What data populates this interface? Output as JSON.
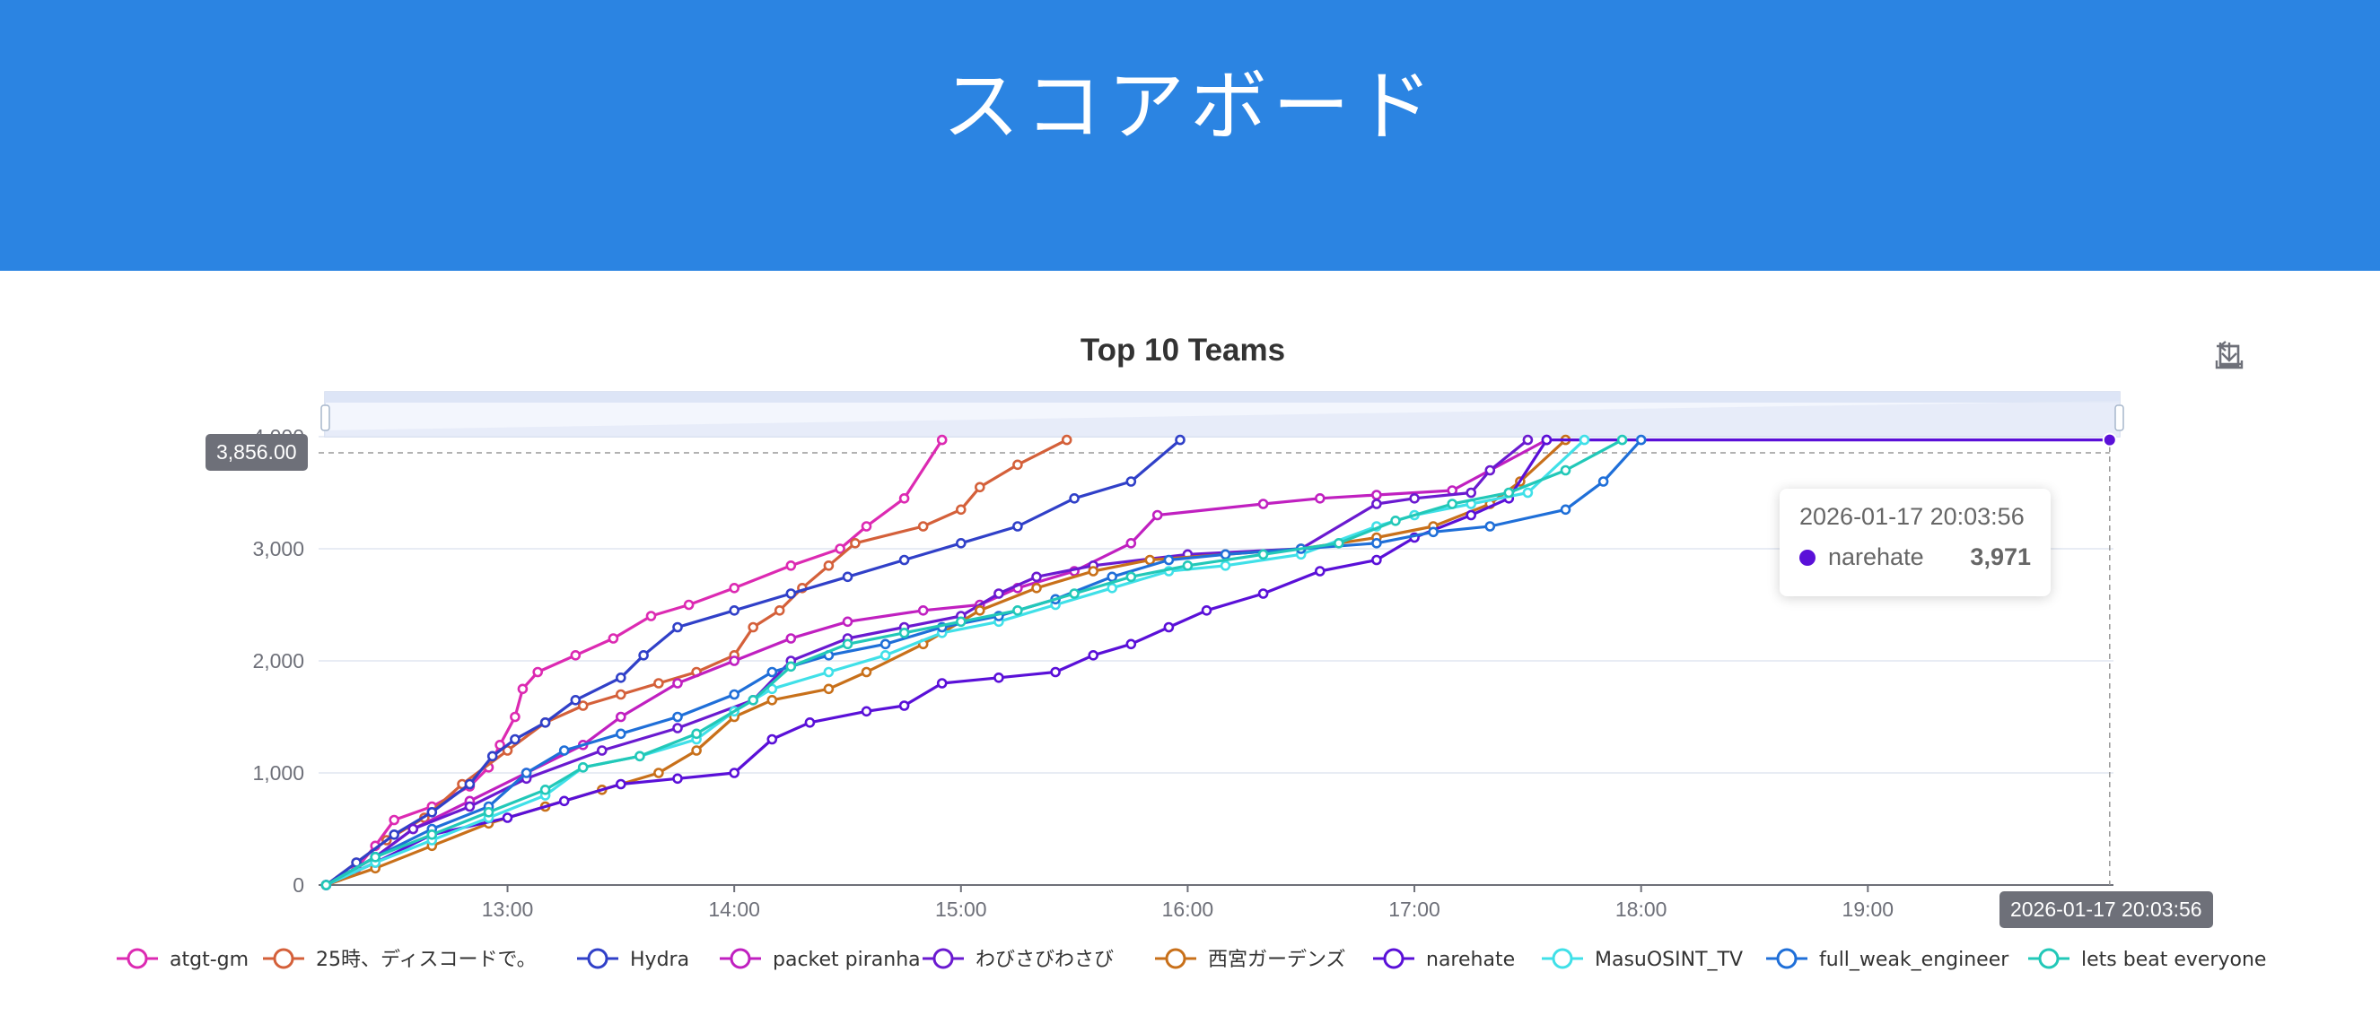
{
  "page": {
    "heading": "スコアボード"
  },
  "toolbox": {
    "icons": [
      "zoom-select-icon",
      "zoom-reset-icon",
      "save-image-icon"
    ]
  },
  "tooltip": {
    "time": "2026-01-17 20:03:56",
    "team": "narehate",
    "score": "3,971",
    "color": "#5a10d8"
  },
  "crosshair": {
    "y_label": "3,856.00",
    "x_label": "2026-01-17 20:03:56"
  },
  "chart_data": {
    "type": "line",
    "title": "Top 10 Teams",
    "xlabel": "",
    "ylabel": "",
    "xlim": [
      "12:10",
      "20:05"
    ],
    "ylim": [
      0,
      4000
    ],
    "x_ticks": [
      "13:00",
      "14:00",
      "15:00",
      "16:00",
      "17:00",
      "18:00",
      "19:00"
    ],
    "y_ticks": [
      "0",
      "1,000",
      "2,000",
      "3,000",
      "4,000"
    ],
    "grid": true,
    "legend_position": "bottom",
    "series": [
      {
        "name": "atgt-gm",
        "color": "#dc2ab2",
        "points": [
          [
            "12:12",
            0
          ],
          [
            "12:20",
            150
          ],
          [
            "12:25",
            350
          ],
          [
            "12:30",
            580
          ],
          [
            "12:40",
            700
          ],
          [
            "12:50",
            880
          ],
          [
            "12:55",
            1050
          ],
          [
            "12:58",
            1250
          ],
          [
            "13:02",
            1500
          ],
          [
            "13:04",
            1750
          ],
          [
            "13:08",
            1900
          ],
          [
            "13:18",
            2050
          ],
          [
            "13:28",
            2200
          ],
          [
            "13:38",
            2400
          ],
          [
            "13:48",
            2500
          ],
          [
            "14:00",
            2650
          ],
          [
            "14:15",
            2850
          ],
          [
            "14:28",
            3000
          ],
          [
            "14:35",
            3200
          ],
          [
            "14:45",
            3450
          ],
          [
            "14:55",
            3971
          ]
        ]
      },
      {
        "name": "25時、ディスコードで。",
        "color": "#d4603a",
        "points": [
          [
            "12:12",
            0
          ],
          [
            "12:20",
            200
          ],
          [
            "12:28",
            400
          ],
          [
            "12:38",
            600
          ],
          [
            "12:48",
            900
          ],
          [
            "13:00",
            1200
          ],
          [
            "13:10",
            1450
          ],
          [
            "13:20",
            1600
          ],
          [
            "13:30",
            1700
          ],
          [
            "13:40",
            1800
          ],
          [
            "13:50",
            1900
          ],
          [
            "14:00",
            2050
          ],
          [
            "14:05",
            2300
          ],
          [
            "14:12",
            2450
          ],
          [
            "14:18",
            2650
          ],
          [
            "14:25",
            2850
          ],
          [
            "14:32",
            3050
          ],
          [
            "14:50",
            3200
          ],
          [
            "15:00",
            3350
          ],
          [
            "15:05",
            3550
          ],
          [
            "15:15",
            3750
          ],
          [
            "15:28",
            3971
          ]
        ]
      },
      {
        "name": "Hydra",
        "color": "#3040c8",
        "points": [
          [
            "12:12",
            0
          ],
          [
            "12:20",
            200
          ],
          [
            "12:30",
            450
          ],
          [
            "12:40",
            650
          ],
          [
            "12:50",
            900
          ],
          [
            "12:56",
            1150
          ],
          [
            "13:02",
            1300
          ],
          [
            "13:10",
            1450
          ],
          [
            "13:18",
            1650
          ],
          [
            "13:30",
            1850
          ],
          [
            "13:36",
            2050
          ],
          [
            "13:45",
            2300
          ],
          [
            "14:00",
            2450
          ],
          [
            "14:15",
            2600
          ],
          [
            "14:30",
            2750
          ],
          [
            "14:45",
            2900
          ],
          [
            "15:00",
            3050
          ],
          [
            "15:15",
            3200
          ],
          [
            "15:30",
            3450
          ],
          [
            "15:45",
            3600
          ],
          [
            "15:58",
            3971
          ]
        ]
      },
      {
        "name": "packet piranha",
        "color": "#c020c0",
        "points": [
          [
            "12:12",
            0
          ],
          [
            "12:25",
            250
          ],
          [
            "12:35",
            500
          ],
          [
            "12:50",
            750
          ],
          [
            "13:05",
            1000
          ],
          [
            "13:20",
            1250
          ],
          [
            "13:30",
            1500
          ],
          [
            "13:45",
            1800
          ],
          [
            "14:00",
            2000
          ],
          [
            "14:15",
            2200
          ],
          [
            "14:30",
            2350
          ],
          [
            "14:50",
            2450
          ],
          [
            "15:05",
            2500
          ],
          [
            "15:15",
            2650
          ],
          [
            "15:30",
            2800
          ],
          [
            "15:45",
            3050
          ],
          [
            "15:52",
            3300
          ],
          [
            "16:20",
            3400
          ],
          [
            "16:35",
            3450
          ],
          [
            "16:50",
            3480
          ],
          [
            "17:10",
            3520
          ],
          [
            "17:35",
            3971
          ]
        ]
      },
      {
        "name": "わびさびわさび",
        "color": "#6a1ad0",
        "points": [
          [
            "12:12",
            0
          ],
          [
            "12:25",
            250
          ],
          [
            "12:35",
            500
          ],
          [
            "12:50",
            700
          ],
          [
            "13:05",
            950
          ],
          [
            "13:25",
            1200
          ],
          [
            "13:45",
            1400
          ],
          [
            "14:05",
            1650
          ],
          [
            "14:15",
            2000
          ],
          [
            "14:30",
            2200
          ],
          [
            "14:45",
            2300
          ],
          [
            "15:00",
            2400
          ],
          [
            "15:10",
            2600
          ],
          [
            "15:20",
            2750
          ],
          [
            "15:35",
            2850
          ],
          [
            "16:00",
            2950
          ],
          [
            "16:30",
            3000
          ],
          [
            "16:50",
            3400
          ],
          [
            "17:00",
            3450
          ],
          [
            "17:15",
            3500
          ],
          [
            "17:20",
            3700
          ],
          [
            "17:30",
            3971
          ]
        ]
      },
      {
        "name": "西宮ガーデンズ",
        "color": "#c8701a",
        "points": [
          [
            "12:12",
            0
          ],
          [
            "12:25",
            150
          ],
          [
            "12:40",
            350
          ],
          [
            "12:55",
            550
          ],
          [
            "13:10",
            700
          ],
          [
            "13:25",
            850
          ],
          [
            "13:40",
            1000
          ],
          [
            "13:50",
            1200
          ],
          [
            "14:00",
            1500
          ],
          [
            "14:10",
            1650
          ],
          [
            "14:25",
            1750
          ],
          [
            "14:35",
            1900
          ],
          [
            "14:50",
            2150
          ],
          [
            "15:05",
            2450
          ],
          [
            "15:20",
            2650
          ],
          [
            "15:35",
            2800
          ],
          [
            "15:50",
            2900
          ],
          [
            "16:10",
            2950
          ],
          [
            "16:30",
            3000
          ],
          [
            "16:50",
            3100
          ],
          [
            "17:05",
            3200
          ],
          [
            "17:20",
            3400
          ],
          [
            "17:28",
            3600
          ],
          [
            "17:40",
            3971
          ]
        ]
      },
      {
        "name": "narehate",
        "color": "#5a10d8",
        "points": [
          [
            "12:12",
            0
          ],
          [
            "12:25",
            200
          ],
          [
            "12:40",
            450
          ],
          [
            "13:00",
            600
          ],
          [
            "13:15",
            750
          ],
          [
            "13:30",
            900
          ],
          [
            "13:45",
            950
          ],
          [
            "14:00",
            1000
          ],
          [
            "14:10",
            1300
          ],
          [
            "14:20",
            1450
          ],
          [
            "14:35",
            1550
          ],
          [
            "14:45",
            1600
          ],
          [
            "14:55",
            1800
          ],
          [
            "15:10",
            1850
          ],
          [
            "15:25",
            1900
          ],
          [
            "15:35",
            2050
          ],
          [
            "15:45",
            2150
          ],
          [
            "15:55",
            2300
          ],
          [
            "16:05",
            2450
          ],
          [
            "16:20",
            2600
          ],
          [
            "16:35",
            2800
          ],
          [
            "16:50",
            2900
          ],
          [
            "17:00",
            3100
          ],
          [
            "17:15",
            3300
          ],
          [
            "17:25",
            3450
          ],
          [
            "17:35",
            3971
          ],
          [
            "20:04",
            3971
          ]
        ]
      },
      {
        "name": "MasuOSINT_TV",
        "color": "#40e0e8",
        "points": [
          [
            "12:12",
            0
          ],
          [
            "12:25",
            200
          ],
          [
            "12:40",
            400
          ],
          [
            "12:55",
            600
          ],
          [
            "13:10",
            800
          ],
          [
            "13:20",
            1050
          ],
          [
            "13:35",
            1150
          ],
          [
            "13:50",
            1300
          ],
          [
            "14:00",
            1550
          ],
          [
            "14:10",
            1750
          ],
          [
            "14:25",
            1900
          ],
          [
            "14:40",
            2050
          ],
          [
            "14:55",
            2250
          ],
          [
            "15:10",
            2350
          ],
          [
            "15:25",
            2500
          ],
          [
            "15:40",
            2650
          ],
          [
            "15:55",
            2800
          ],
          [
            "16:10",
            2850
          ],
          [
            "16:30",
            2950
          ],
          [
            "16:50",
            3200
          ],
          [
            "17:00",
            3300
          ],
          [
            "17:15",
            3400
          ],
          [
            "17:30",
            3500
          ],
          [
            "17:45",
            3971
          ]
        ]
      },
      {
        "name": "full_weak_engineer",
        "color": "#1f6fd8",
        "points": [
          [
            "12:12",
            0
          ],
          [
            "12:25",
            250
          ],
          [
            "12:40",
            500
          ],
          [
            "12:55",
            700
          ],
          [
            "13:05",
            1000
          ],
          [
            "13:15",
            1200
          ],
          [
            "13:30",
            1350
          ],
          [
            "13:45",
            1500
          ],
          [
            "14:00",
            1700
          ],
          [
            "14:10",
            1900
          ],
          [
            "14:25",
            2050
          ],
          [
            "14:40",
            2150
          ],
          [
            "14:55",
            2300
          ],
          [
            "15:10",
            2400
          ],
          [
            "15:25",
            2550
          ],
          [
            "15:40",
            2750
          ],
          [
            "15:55",
            2900
          ],
          [
            "16:10",
            2950
          ],
          [
            "16:30",
            3000
          ],
          [
            "16:50",
            3050
          ],
          [
            "17:05",
            3150
          ],
          [
            "17:20",
            3200
          ],
          [
            "17:40",
            3350
          ],
          [
            "17:50",
            3600
          ],
          [
            "18:00",
            3971
          ]
        ]
      },
      {
        "name": "lets beat everyone",
        "color": "#22c8b8",
        "points": [
          [
            "12:12",
            0
          ],
          [
            "12:25",
            250
          ],
          [
            "12:40",
            450
          ],
          [
            "12:55",
            650
          ],
          [
            "13:10",
            850
          ],
          [
            "13:20",
            1050
          ],
          [
            "13:35",
            1150
          ],
          [
            "13:50",
            1350
          ],
          [
            "14:05",
            1650
          ],
          [
            "14:15",
            1950
          ],
          [
            "14:30",
            2150
          ],
          [
            "14:45",
            2250
          ],
          [
            "15:00",
            2350
          ],
          [
            "15:15",
            2450
          ],
          [
            "15:30",
            2600
          ],
          [
            "15:45",
            2750
          ],
          [
            "16:00",
            2850
          ],
          [
            "16:20",
            2950
          ],
          [
            "16:40",
            3050
          ],
          [
            "16:55",
            3250
          ],
          [
            "17:10",
            3400
          ],
          [
            "17:25",
            3500
          ],
          [
            "17:40",
            3700
          ],
          [
            "17:55",
            3971
          ]
        ]
      }
    ]
  }
}
